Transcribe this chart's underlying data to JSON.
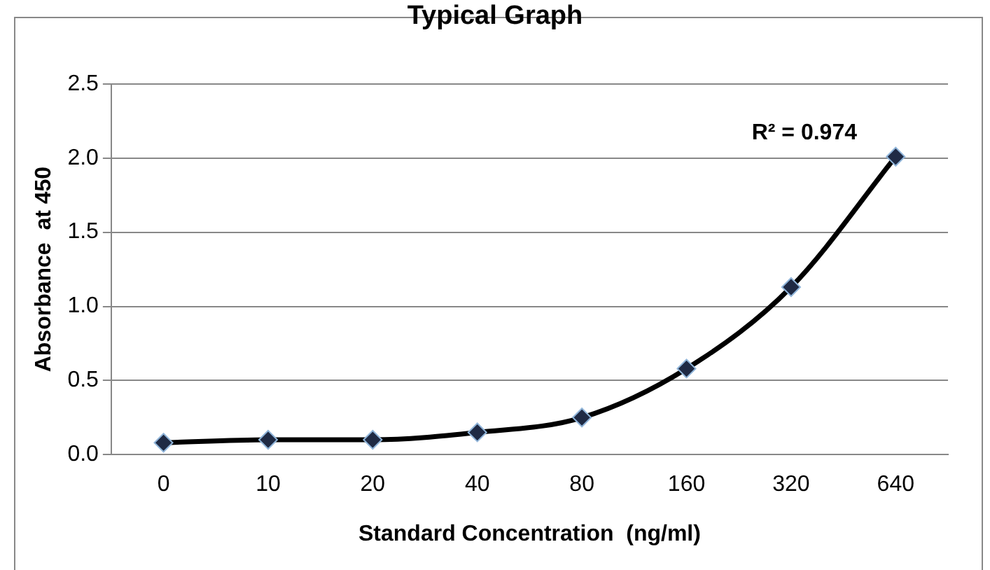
{
  "chart_data": {
    "type": "line",
    "title": "Typical Graph",
    "xlabel": "Standard Concentration  (ng/ml)",
    "ylabel": "Absorbance  at 450",
    "categories": [
      "0",
      "10",
      "20",
      "40",
      "80",
      "160",
      "320",
      "640"
    ],
    "series": [
      {
        "color": "#000000",
        "values": [
          0.08,
          0.1,
          0.1,
          0.15,
          0.25,
          0.58,
          1.13,
          2.01
        ]
      }
    ],
    "ylim": [
      0,
      2.5
    ],
    "yticks": [
      {
        "value": 0,
        "label": "0.0"
      },
      {
        "value": 0.5,
        "label": "0.5"
      },
      {
        "value": 1,
        "label": "1.0"
      },
      {
        "value": 1.5,
        "label": "1.5"
      },
      {
        "value": 2,
        "label": "2.0"
      },
      {
        "value": 2.5,
        "label": "2.5"
      }
    ],
    "grid": "y",
    "marker": "diamond",
    "line_style": "solid",
    "annotations": [
      "R² = 0.974"
    ]
  }
}
